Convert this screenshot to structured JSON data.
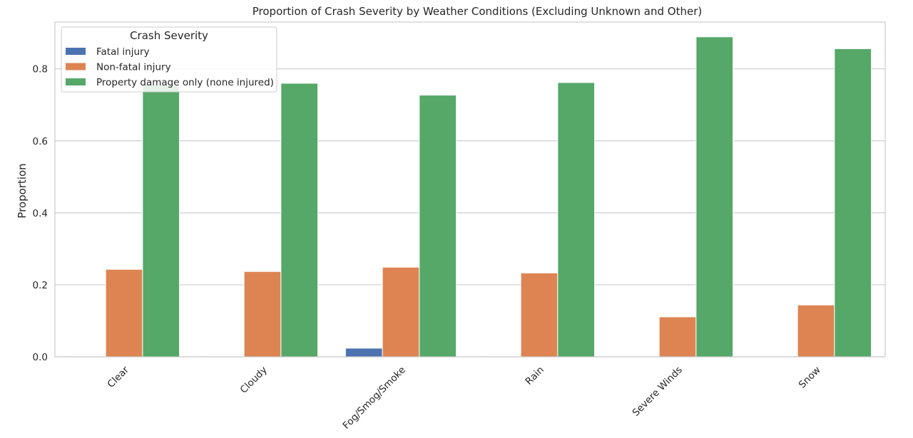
{
  "chart_data": {
    "type": "bar",
    "title": "Proportion of Crash Severity by Weather Conditions (Excluding Unknown and Other)",
    "xlabel": "",
    "ylabel": "Proportion",
    "categories": [
      "Clear",
      "Cloudy",
      "Fog/Smog/Smoke",
      "Rain",
      "Severe Winds",
      "Snow"
    ],
    "series": [
      {
        "name": "Fatal injury",
        "color": "#4c72b0",
        "values": [
          0.002,
          0.002,
          0.024,
          0.002,
          0.0,
          0.0
        ]
      },
      {
        "name": "Non-fatal injury",
        "color": "#dd8452",
        "values": [
          0.243,
          0.237,
          0.249,
          0.233,
          0.111,
          0.144
        ]
      },
      {
        "name": "Property damage only (none injured)",
        "color": "#55a868",
        "values": [
          0.755,
          0.76,
          0.727,
          0.762,
          0.889,
          0.856
        ]
      }
    ],
    "ylim": [
      0,
      0.93
    ],
    "yticks": [
      "0.0",
      "0.2",
      "0.4",
      "0.6",
      "0.8"
    ],
    "grid": "y",
    "legend": {
      "title": "Crash Severity",
      "placement": "top-left"
    }
  }
}
